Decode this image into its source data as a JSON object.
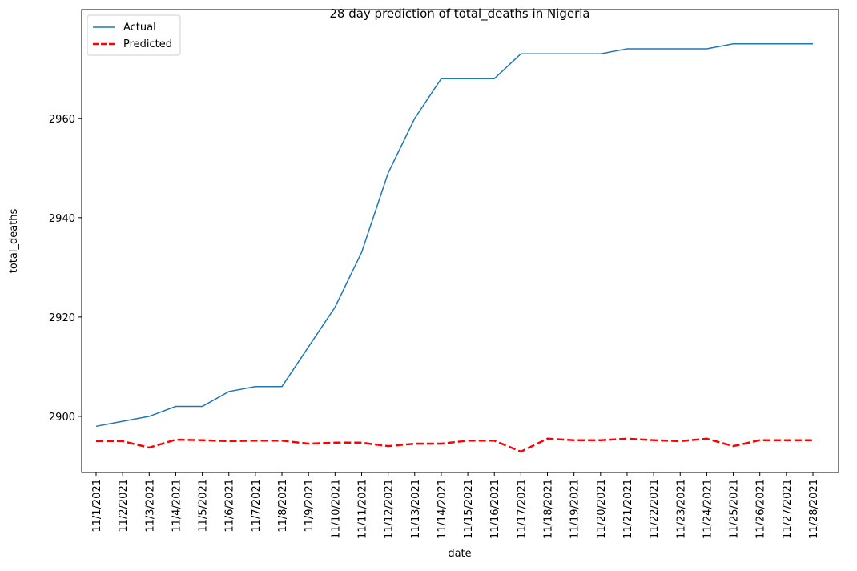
{
  "chart_data": {
    "type": "line",
    "title": "28 day prediction of total_deaths in Nigeria",
    "x_label": "date",
    "y_label": "total_deaths",
    "categories": [
      "11/1/2021",
      "11/2/2021",
      "11/3/2021",
      "11/4/2021",
      "11/5/2021",
      "11/6/2021",
      "11/7/2021",
      "11/8/2021",
      "11/9/2021",
      "11/10/2021",
      "11/11/2021",
      "11/12/2021",
      "11/13/2021",
      "11/14/2021",
      "11/15/2021",
      "11/16/2021",
      "11/17/2021",
      "11/18/2021",
      "11/19/2021",
      "11/20/2021",
      "11/21/2021",
      "11/22/2021",
      "11/23/2021",
      "11/24/2021",
      "11/25/2021",
      "11/26/2021",
      "11/27/2021",
      "11/28/2021"
    ],
    "series": [
      {
        "name": "Actual",
        "color": "#1f77b4",
        "dashed": false,
        "values": [
          2898,
          2899,
          2900,
          2902,
          2902,
          2905,
          2906,
          2906,
          2914,
          2922,
          2933,
          2949,
          2960,
          2968,
          2968,
          2968,
          2973,
          2973,
          2973,
          2973,
          2974,
          2974,
          2974,
          2974,
          2975,
          2975,
          2975,
          2975
        ]
      },
      {
        "name": "Predicted",
        "color": "#ff0000",
        "dashed": true,
        "values": [
          2895.0,
          2895.0,
          2893.7,
          2895.3,
          2895.2,
          2895.0,
          2895.1,
          2895.1,
          2894.5,
          2894.7,
          2894.7,
          2894.0,
          2894.5,
          2894.5,
          2895.1,
          2895.1,
          2892.9,
          2895.5,
          2895.2,
          2895.2,
          2895.5,
          2895.2,
          2895.0,
          2895.5,
          2894.0,
          2895.2,
          2895.2,
          2895.2
        ]
      }
    ],
    "ylim": [
      2888.7,
      2981.9
    ],
    "yticks": [
      2900,
      2920,
      2940,
      2960
    ],
    "legend": "upper left"
  }
}
